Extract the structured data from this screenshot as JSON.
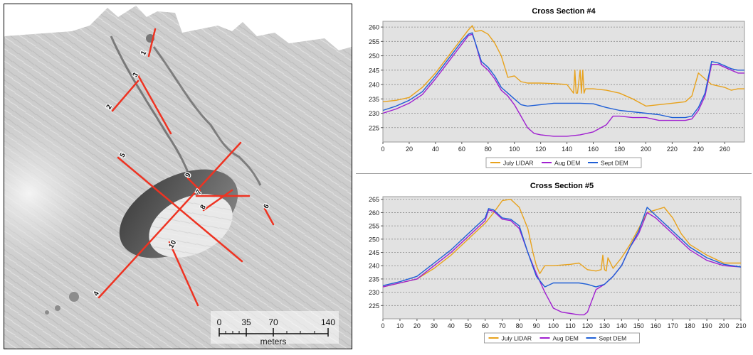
{
  "map": {
    "scale_ticks": [
      "0",
      "35",
      "70",
      "140"
    ],
    "scale_unit": "meters",
    "section_color": "#ee3322",
    "section_labels": [
      "1",
      "2",
      "3",
      "4",
      "5",
      "6",
      "7",
      "8",
      "9",
      "10"
    ]
  },
  "chart_data": [
    {
      "type": "line",
      "title": "Cross Section #4",
      "xlabel": "",
      "ylabel": "",
      "xlim": [
        0,
        275
      ],
      "ylim": [
        220,
        262
      ],
      "xticks": [
        0,
        20,
        40,
        60,
        80,
        100,
        120,
        140,
        160,
        180,
        200,
        220,
        240,
        260
      ],
      "yticks": [
        225,
        230,
        235,
        240,
        245,
        250,
        255,
        260
      ],
      "grid": true,
      "legend": "bottom",
      "series": [
        {
          "name": "July LIDAR",
          "color": "#e8a21c",
          "x": [
            0,
            10,
            20,
            30,
            40,
            50,
            55,
            60,
            65,
            68,
            70,
            75,
            80,
            85,
            90,
            95,
            100,
            105,
            110,
            115,
            120,
            130,
            140,
            145,
            146,
            147,
            148,
            150,
            151,
            152,
            153,
            154,
            155,
            160,
            170,
            180,
            190,
            200,
            210,
            220,
            230,
            235,
            240,
            245,
            250,
            255,
            260,
            265,
            270,
            275
          ],
          "y": [
            234,
            234.5,
            235.5,
            239,
            244,
            250,
            253,
            256,
            259,
            260.5,
            258.5,
            258.8,
            257.5,
            254.5,
            250,
            242.5,
            243,
            241,
            240.5,
            240.5,
            240.5,
            240.3,
            240,
            237,
            245,
            237,
            237,
            245,
            237,
            245,
            237,
            238.5,
            238.5,
            238.5,
            238,
            237,
            235,
            232.5,
            233,
            233.5,
            234,
            236,
            244,
            242,
            240,
            239.5,
            239,
            238,
            238.5,
            238.5
          ]
        },
        {
          "name": "Aug DEM",
          "color": "#a020d0",
          "x": [
            0,
            10,
            20,
            30,
            40,
            50,
            55,
            60,
            65,
            68,
            70,
            75,
            80,
            85,
            90,
            95,
            100,
            105,
            110,
            115,
            120,
            130,
            140,
            150,
            160,
            170,
            175,
            180,
            190,
            200,
            210,
            220,
            230,
            235,
            240,
            245,
            250,
            255,
            260,
            265,
            270,
            275
          ],
          "y": [
            230,
            231.5,
            233.5,
            236.5,
            242,
            248,
            251,
            254,
            257,
            257.5,
            255,
            247,
            245,
            242,
            238,
            236,
            233,
            229,
            225,
            223,
            222.5,
            222,
            222,
            222.5,
            223.5,
            226,
            229,
            229,
            228.5,
            228.5,
            227.5,
            227.5,
            227.5,
            228,
            231,
            236,
            247,
            247,
            246,
            245,
            244,
            244
          ]
        },
        {
          "name": "Sept DEM",
          "color": "#1f5fd6",
          "x": [
            0,
            10,
            20,
            30,
            40,
            50,
            55,
            60,
            65,
            68,
            70,
            75,
            80,
            85,
            90,
            95,
            100,
            105,
            110,
            120,
            130,
            140,
            150,
            160,
            170,
            180,
            190,
            200,
            210,
            220,
            230,
            235,
            240,
            245,
            250,
            255,
            260,
            265,
            270,
            275
          ],
          "y": [
            231,
            232.5,
            234.5,
            237.5,
            243,
            249,
            252,
            255,
            257.5,
            258,
            255,
            248,
            246,
            243,
            239,
            237,
            235,
            233,
            232.5,
            233,
            233.5,
            233.5,
            233.5,
            233.3,
            232,
            231,
            230.5,
            230,
            229.5,
            228.5,
            228.5,
            229,
            232,
            237,
            248,
            247.5,
            246.5,
            245.5,
            245,
            245
          ]
        }
      ]
    },
    {
      "type": "line",
      "title": "Cross Section #5",
      "xlabel": "",
      "ylabel": "",
      "xlim": [
        0,
        210
      ],
      "ylim": [
        220,
        266
      ],
      "xticks": [
        0,
        10,
        20,
        30,
        40,
        50,
        60,
        70,
        80,
        90,
        100,
        110,
        120,
        130,
        140,
        150,
        160,
        170,
        180,
        190,
        200,
        210
      ],
      "yticks": [
        225,
        230,
        235,
        240,
        245,
        250,
        255,
        260,
        265
      ],
      "grid": true,
      "legend": "bottom",
      "series": [
        {
          "name": "July LIDAR",
          "color": "#e8a21c",
          "x": [
            0,
            10,
            20,
            30,
            40,
            50,
            60,
            65,
            70,
            75,
            80,
            85,
            88,
            90,
            92,
            95,
            100,
            110,
            115,
            120,
            125,
            128,
            129,
            130,
            131,
            132,
            135,
            140,
            145,
            150,
            155,
            160,
            165,
            170,
            175,
            180,
            190,
            200,
            210
          ],
          "y": [
            232,
            233.5,
            235,
            239,
            244,
            250,
            256,
            260,
            264.5,
            265,
            262,
            254,
            245,
            240,
            237,
            240,
            240,
            240.5,
            241,
            238.5,
            238,
            238.5,
            244,
            238.5,
            238,
            243,
            239,
            243,
            248,
            254,
            260,
            261,
            262,
            258,
            252,
            248,
            244,
            241,
            241
          ]
        },
        {
          "name": "Aug DEM",
          "color": "#a020d0",
          "x": [
            0,
            10,
            20,
            30,
            40,
            50,
            60,
            62,
            65,
            70,
            75,
            80,
            85,
            90,
            95,
            100,
            105,
            110,
            115,
            118,
            120,
            125,
            130,
            135,
            140,
            145,
            150,
            155,
            160,
            165,
            170,
            180,
            190,
            200,
            210
          ],
          "y": [
            232,
            233.5,
            235,
            240,
            245,
            251,
            257,
            261,
            260.5,
            257.5,
            257,
            254,
            245,
            237,
            230,
            224,
            222.5,
            222,
            221.5,
            221.5,
            222.5,
            231,
            233,
            236,
            240,
            247,
            252,
            260,
            258,
            255,
            252,
            246,
            242,
            240,
            239.5
          ]
        },
        {
          "name": "Sept DEM",
          "color": "#1f5fd6",
          "x": [
            0,
            10,
            20,
            30,
            40,
            50,
            60,
            62,
            65,
            70,
            75,
            80,
            85,
            90,
            95,
            100,
            105,
            110,
            115,
            120,
            125,
            130,
            135,
            140,
            145,
            150,
            155,
            160,
            165,
            170,
            180,
            190,
            200,
            210
          ],
          "y": [
            232.5,
            234,
            236,
            241,
            246,
            252,
            258,
            261.5,
            261,
            258,
            257.5,
            255,
            245,
            236,
            232,
            233.5,
            233.5,
            233.5,
            233.5,
            233,
            232,
            233,
            236,
            240,
            247,
            253,
            262,
            259,
            256,
            253,
            247,
            243,
            240.5,
            239.5
          ]
        }
      ]
    }
  ]
}
